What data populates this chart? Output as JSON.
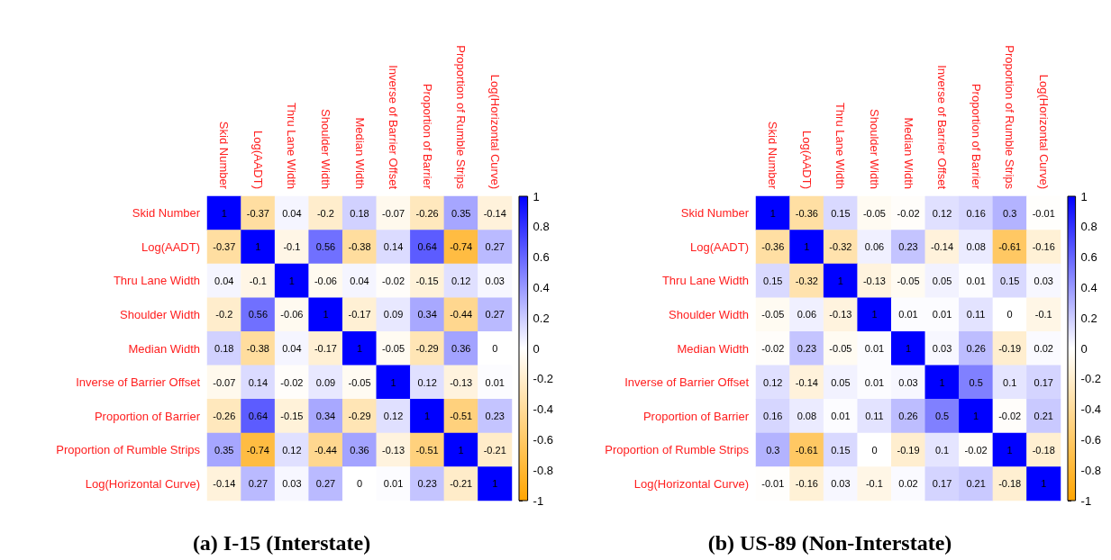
{
  "chart_data": [
    {
      "type": "heatmap",
      "title": "(a) I-15 (Interstate)",
      "data_labels": true,
      "clim": [
        -1,
        1
      ],
      "cticks": [
        -1,
        -0.8,
        -0.6,
        -0.4,
        -0.2,
        0,
        0.2,
        0.4,
        0.6,
        0.8,
        1
      ],
      "categories": [
        "Skid Number",
        "Log(AADT)",
        "Thru Lane Width",
        "Shoulder Width",
        "Median Width",
        "Inverse of Barrier Offset",
        "Proportion of Barrier",
        "Proportion of Rumble Strips",
        "Log(Horizontal Curve)"
      ],
      "y_categories": [
        "Skid Number",
        "Log(AADT)",
        "Thru Lane Width",
        "Shoulder Width",
        "Median Width",
        "Inverse of Barrier Offset",
        "Proportion of Barrier",
        "Proportion of Rumble Strips",
        "Log(Horizontal Curve)"
      ],
      "cells": [
        [
          1,
          -0.37,
          0.04,
          -0.2,
          0.18,
          -0.07,
          -0.26,
          0.35,
          -0.14
        ],
        [
          -0.37,
          1,
          -0.1,
          0.56,
          -0.38,
          0.14,
          0.64,
          -0.74,
          0.27
        ],
        [
          0.04,
          -0.1,
          1,
          -0.06,
          0.04,
          -0.02,
          -0.15,
          0.12,
          0.03
        ],
        [
          -0.2,
          0.56,
          -0.06,
          1,
          -0.17,
          0.09,
          0.34,
          -0.44,
          0.27
        ],
        [
          0.18,
          -0.38,
          0.04,
          -0.17,
          1,
          -0.05,
          -0.29,
          0.36,
          0
        ],
        [
          -0.07,
          0.14,
          -0.02,
          0.09,
          -0.05,
          1,
          0.12,
          -0.13,
          0.01
        ],
        [
          -0.26,
          0.64,
          -0.15,
          0.34,
          -0.29,
          0.12,
          1,
          -0.51,
          0.23
        ],
        [
          0.35,
          -0.74,
          0.12,
          -0.44,
          0.36,
          -0.13,
          -0.51,
          1,
          -0.21
        ],
        [
          -0.14,
          0.27,
          0.03,
          0.27,
          0,
          0.01,
          0.23,
          -0.21,
          1
        ]
      ]
    },
    {
      "type": "heatmap",
      "title": "(b) US-89 (Non-Interstate)",
      "data_labels": true,
      "clim": [
        -1,
        1
      ],
      "cticks": [
        -1,
        -0.8,
        -0.6,
        -0.4,
        -0.2,
        0,
        0.2,
        0.4,
        0.6,
        0.8,
        1
      ],
      "categories": [
        "Skid Number",
        "Log(AADT)",
        "Thru Lane Width",
        "Shoulder Width",
        "Median Width",
        "Inverse of Barrier Offset",
        "Proportion of Barrier",
        "Proportion of Rumble Strips",
        "Log(Horizontal Curve)"
      ],
      "y_categories": [
        "Skid Number",
        "Log(AADT)",
        "Thru Lane Width",
        "Shoulder Width",
        "Median Width",
        "Inverse of Barrier Offset",
        "Proportion of Barrier",
        "Proportion of Rumble Strips",
        "Log(Horizontal Curve)"
      ],
      "cells": [
        [
          1,
          -0.36,
          0.15,
          -0.05,
          -0.02,
          0.12,
          0.16,
          0.3,
          -0.01
        ],
        [
          -0.36,
          1,
          -0.32,
          0.06,
          0.23,
          -0.14,
          0.08,
          -0.61,
          -0.16
        ],
        [
          0.15,
          -0.32,
          1,
          -0.13,
          -0.05,
          0.05,
          0.01,
          0.15,
          0.03
        ],
        [
          -0.05,
          0.06,
          -0.13,
          1,
          0.01,
          0.01,
          0.11,
          0,
          -0.1
        ],
        [
          -0.02,
          0.23,
          -0.05,
          0.01,
          1,
          0.03,
          0.26,
          -0.19,
          0.02
        ],
        [
          0.12,
          -0.14,
          0.05,
          0.01,
          0.03,
          1,
          0.5,
          0.1,
          0.17
        ],
        [
          0.16,
          0.08,
          0.01,
          0.11,
          0.26,
          0.5,
          1,
          -0.02,
          0.21
        ],
        [
          0.3,
          -0.61,
          0.15,
          0,
          -0.19,
          0.1,
          -0.02,
          1,
          -0.18
        ],
        [
          -0.01,
          -0.16,
          0.03,
          -0.1,
          0.02,
          0.17,
          0.21,
          -0.18,
          1
        ]
      ]
    }
  ]
}
